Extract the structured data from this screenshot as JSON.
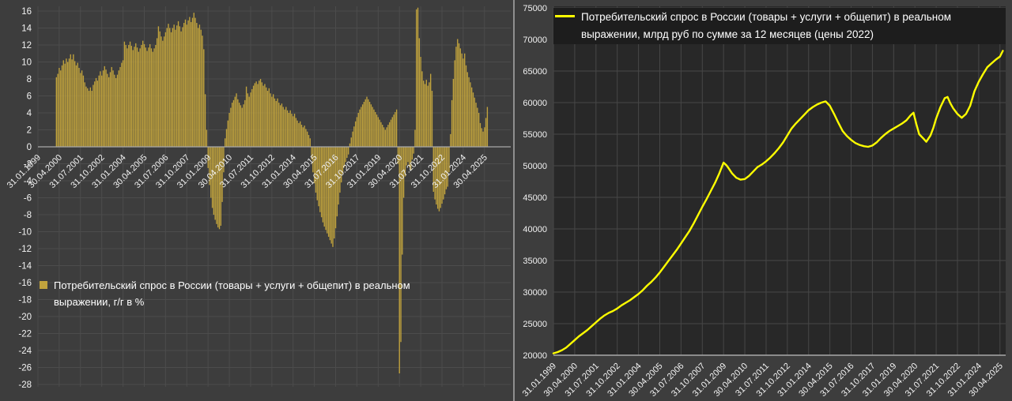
{
  "page": {
    "background": "#3d3d3d",
    "divider_color": "#8f8f8f",
    "text_color": "#f2f2f2"
  },
  "left_chart": {
    "legend": {
      "lines": [
        "Потребительский спрос в России (товары + услуги + общепит) в реальном",
        "выражении, г/г в %"
      ]
    }
  },
  "right_chart": {
    "legend": {
      "lines": [
        "Потребительский спрос в России (товары + услуги + общепит) в реальном",
        "выражении, млрд руб по сумме за 12 месяцев (цены 2022)"
      ]
    }
  },
  "chart_data": [
    {
      "type": "bar",
      "title": "Потребительский спрос в России (товары + услуги + общепит) в реальном выражении, г/г в %",
      "ylabel": "г/г в %",
      "ylim": [
        -28,
        16
      ],
      "ytick_step": 2,
      "y_tick_labels": [
        "16",
        "14",
        "12",
        "10",
        "8",
        "6",
        "4",
        "2",
        "0",
        "-2",
        "-4",
        "-6",
        "-8",
        "-10",
        "-12",
        "-14",
        "-16",
        "-18",
        "-20",
        "-22",
        "-24",
        "-26",
        "-28"
      ],
      "x_tick_labels": [
        "31.01.1999",
        "30.04.2000",
        "31.07.2001",
        "31.10.2002",
        "31.01.2004",
        "30.04.2005",
        "31.07.2006",
        "31.10.2007",
        "31.01.2009",
        "30.04.2010",
        "31.07.2011",
        "31.10.2012",
        "31.01.2014",
        "30.04.2015",
        "31.07.2016",
        "31.10.2017",
        "31.01.2019",
        "30.04.2020",
        "31.07.2021",
        "31.10.2022",
        "31.01.2024",
        "30.04.2025"
      ],
      "x_tick_month_step": 15,
      "grid": true,
      "bar_color": "#c1a33d",
      "grid_color": "#4c4c4c",
      "axis_color": "#a8a8a8",
      "start": "2000-02",
      "values_by_year": {
        "2000": [
          8.2,
          8.6,
          9.3,
          9.0,
          9.6,
          10.2,
          9.8,
          10.4,
          10.0,
          10.4,
          10.9
        ],
        "2001": [
          10.3,
          10.9,
          10.1,
          9.6,
          9.9,
          9.3,
          8.7,
          9.0,
          8.4,
          7.6,
          7.1,
          6.9
        ],
        "2002": [
          6.6,
          7.0,
          6.6,
          7.3,
          7.7,
          8.1,
          7.8,
          8.4,
          8.9,
          8.4,
          9.0,
          9.5
        ],
        "2003": [
          9.1,
          8.6,
          8.2,
          8.8,
          9.4,
          9.0,
          8.5,
          8.1,
          8.5,
          9.0,
          9.4,
          9.9
        ],
        "2004": [
          10.2,
          12.4,
          12.0,
          11.6,
          12.0,
          12.4,
          11.9,
          11.4,
          11.8,
          12.2,
          11.7,
          11.2
        ],
        "2005": [
          11.6,
          12.0,
          12.5,
          12.1,
          11.7,
          11.3,
          11.7,
          12.1,
          11.6,
          11.2,
          11.6,
          12.0
        ],
        "2006": [
          12.8,
          14.2,
          13.6,
          13.0,
          12.5,
          13.0,
          13.5,
          14.0,
          14.5,
          14.0,
          13.5,
          14.0
        ],
        "2007": [
          14.4,
          13.8,
          14.3,
          14.8,
          14.2,
          13.6,
          14.1,
          14.6,
          15.0,
          14.4,
          14.9,
          15.3
        ],
        "2008": [
          14.7,
          15.2,
          15.8,
          15.2,
          14.6,
          14.0,
          14.4,
          13.8,
          13.1,
          11.5,
          6.2,
          2.0
        ],
        "2009": [
          -2.5,
          -4.5,
          -6.0,
          -7.2,
          -8.0,
          -8.6,
          -9.1,
          -9.5,
          -9.7,
          -9.3,
          -6.5,
          -3.0
        ],
        "2010": [
          1.0,
          2.1,
          3.1,
          4.0,
          4.6,
          5.2,
          5.5,
          5.9,
          6.3,
          5.6,
          5.2,
          4.9
        ],
        "2011": [
          4.6,
          5.0,
          5.5,
          7.1,
          6.3,
          5.9,
          6.4,
          6.8,
          7.2,
          7.5,
          7.7,
          7.4
        ],
        "2012": [
          7.8,
          8.0,
          7.6,
          7.2,
          7.4,
          7.0,
          6.6,
          6.9,
          6.3,
          5.9,
          6.2,
          5.7
        ],
        "2013": [
          5.4,
          5.7,
          5.2,
          4.9,
          5.1,
          4.7,
          4.4,
          4.7,
          4.3,
          4.0,
          4.3,
          3.9
        ],
        "2014": [
          3.6,
          3.9,
          3.4,
          3.1,
          2.8,
          3.0,
          2.6,
          2.3,
          2.5,
          2.1,
          1.8,
          1.4
        ],
        "2015": [
          1.0,
          -1.5,
          -3.0,
          -4.3,
          -5.4,
          -6.3,
          -7.0,
          -7.7,
          -8.3,
          -8.9,
          -9.4,
          -9.8
        ],
        "2016": [
          -10.2,
          -10.6,
          -11.0,
          -11.4,
          -11.8,
          -10.8,
          -9.6,
          -8.2,
          -6.8,
          -5.4,
          -4.2,
          -3.2
        ],
        "2017": [
          -2.4,
          -1.8,
          -1.3,
          -0.9,
          0.4,
          1.1,
          1.8,
          2.4,
          3.0,
          3.5,
          4.0,
          4.4
        ],
        "2018": [
          4.7,
          5.0,
          5.3,
          5.6,
          5.9,
          5.6,
          5.3,
          5.0,
          4.7,
          4.4,
          4.1,
          3.8
        ],
        "2019": [
          3.5,
          3.2,
          2.9,
          2.6,
          2.3,
          2.0,
          2.3,
          2.6,
          2.9,
          3.2,
          3.5,
          3.8
        ],
        "2020": [
          4.1,
          4.4,
          -2.0,
          -26.7,
          -23.0,
          -12.7,
          -6.0,
          -3.5,
          -2.2,
          -1.8,
          -2.4,
          -2.8
        ],
        "2021": [
          -1.5,
          -0.8,
          2.0,
          16.2,
          16.4,
          12.8,
          10.6,
          8.9,
          7.8,
          7.4,
          7.9,
          7.2
        ],
        "2022": [
          7.6,
          8.6,
          6.6,
          -5.3,
          -6.2,
          -6.8,
          -7.3,
          -7.6,
          -7.2,
          -6.7,
          -6.2,
          -5.6
        ],
        "2023": [
          -5.0,
          -4.7,
          -3.0,
          1.5,
          5.5,
          8.0,
          10.2,
          11.8,
          12.7,
          12.2,
          11.6,
          11.0
        ],
        "2024": [
          10.4,
          11.0,
          9.6,
          8.8,
          8.2,
          7.6,
          7.0,
          6.4,
          5.8,
          5.2,
          4.6,
          4.0
        ],
        "2025": [
          2.8,
          2.2,
          1.8,
          2.3,
          3.4,
          4.7
        ]
      }
    },
    {
      "type": "line",
      "title": "Потребительский спрос в России (товары + услуги + общепит) в реальном выражении, млрд руб по сумме за 12 месяцев (цены 2022)",
      "ylabel": "млрд руб",
      "ylim": [
        20000,
        75000
      ],
      "ytick_step": 5000,
      "y_tick_labels": [
        "75000",
        "70000",
        "65000",
        "60000",
        "55000",
        "50000",
        "45000",
        "40000",
        "35000",
        "30000",
        "25000",
        "20000"
      ],
      "x_tick_labels": [
        "31.01.1999",
        "30.04.2000",
        "31.07.2001",
        "31.10.2002",
        "31.01.2004",
        "30.04.2005",
        "31.07.2006",
        "31.10.2007",
        "31.01.2009",
        "30.04.2010",
        "31.07.2011",
        "31.10.2012",
        "31.01.2014",
        "30.04.2015",
        "31.07.2016",
        "31.10.2017",
        "31.01.2019",
        "30.04.2020",
        "31.07.2021",
        "31.10.2022",
        "31.01.2024",
        "30.04.2025"
      ],
      "x_tick_month_step": 15,
      "grid": true,
      "line_color": "#ffff00",
      "plot_background": "#282828",
      "legend_background": "#1d1d1d",
      "grid_color": "#474747",
      "axis_color": "#a8a8a8",
      "points": [
        [
          "1999-01",
          20300
        ],
        [
          "1999-04",
          20500
        ],
        [
          "1999-07",
          20800
        ],
        [
          "1999-10",
          21200
        ],
        [
          "2000-01",
          21800
        ],
        [
          "2000-04",
          22400
        ],
        [
          "2000-07",
          23000
        ],
        [
          "2000-10",
          23500
        ],
        [
          "2001-01",
          24000
        ],
        [
          "2001-04",
          24600
        ],
        [
          "2001-07",
          25200
        ],
        [
          "2001-10",
          25800
        ],
        [
          "2002-01",
          26300
        ],
        [
          "2002-04",
          26700
        ],
        [
          "2002-07",
          27000
        ],
        [
          "2002-10",
          27400
        ],
        [
          "2003-01",
          27900
        ],
        [
          "2003-04",
          28300
        ],
        [
          "2003-07",
          28700
        ],
        [
          "2003-10",
          29200
        ],
        [
          "2004-01",
          29700
        ],
        [
          "2004-04",
          30300
        ],
        [
          "2004-07",
          31000
        ],
        [
          "2004-10",
          31600
        ],
        [
          "2005-01",
          32300
        ],
        [
          "2005-04",
          33100
        ],
        [
          "2005-07",
          34000
        ],
        [
          "2005-10",
          34900
        ],
        [
          "2006-01",
          35800
        ],
        [
          "2006-04",
          36700
        ],
        [
          "2006-07",
          37700
        ],
        [
          "2006-10",
          38700
        ],
        [
          "2007-01",
          39700
        ],
        [
          "2007-04",
          40900
        ],
        [
          "2007-07",
          42200
        ],
        [
          "2007-10",
          43500
        ],
        [
          "2008-01",
          44700
        ],
        [
          "2008-04",
          46000
        ],
        [
          "2008-07",
          47300
        ],
        [
          "2008-10",
          48800
        ],
        [
          "2009-01",
          50500
        ],
        [
          "2009-03",
          50100
        ],
        [
          "2009-04",
          49800
        ],
        [
          "2009-07",
          48800
        ],
        [
          "2009-10",
          48100
        ],
        [
          "2010-01",
          47800
        ],
        [
          "2010-04",
          47900
        ],
        [
          "2010-07",
          48400
        ],
        [
          "2010-10",
          49100
        ],
        [
          "2011-01",
          49800
        ],
        [
          "2011-04",
          50200
        ],
        [
          "2011-07",
          50700
        ],
        [
          "2011-10",
          51300
        ],
        [
          "2012-01",
          52000
        ],
        [
          "2012-04",
          52800
        ],
        [
          "2012-07",
          53700
        ],
        [
          "2012-10",
          54800
        ],
        [
          "2013-01",
          55900
        ],
        [
          "2013-04",
          56700
        ],
        [
          "2013-07",
          57400
        ],
        [
          "2013-10",
          58100
        ],
        [
          "2014-01",
          58800
        ],
        [
          "2014-04",
          59300
        ],
        [
          "2014-07",
          59700
        ],
        [
          "2014-10",
          60000
        ],
        [
          "2015-01",
          60200
        ],
        [
          "2015-04",
          59500
        ],
        [
          "2015-07",
          58200
        ],
        [
          "2015-10",
          56800
        ],
        [
          "2016-01",
          55500
        ],
        [
          "2016-04",
          54700
        ],
        [
          "2016-07",
          54100
        ],
        [
          "2016-10",
          53600
        ],
        [
          "2017-01",
          53300
        ],
        [
          "2017-04",
          53100
        ],
        [
          "2017-07",
          53000
        ],
        [
          "2017-10",
          53200
        ],
        [
          "2018-01",
          53700
        ],
        [
          "2018-04",
          54400
        ],
        [
          "2018-07",
          55000
        ],
        [
          "2018-10",
          55500
        ],
        [
          "2019-01",
          55900
        ],
        [
          "2019-04",
          56300
        ],
        [
          "2019-07",
          56700
        ],
        [
          "2019-10",
          57200
        ],
        [
          "2020-01",
          58000
        ],
        [
          "2020-03",
          58400
        ],
        [
          "2020-05",
          56600
        ],
        [
          "2020-07",
          55000
        ],
        [
          "2020-10",
          54300
        ],
        [
          "2020-12",
          53800
        ],
        [
          "2021-03",
          54800
        ],
        [
          "2021-05",
          56000
        ],
        [
          "2021-07",
          57500
        ],
        [
          "2021-10",
          59300
        ],
        [
          "2022-01",
          60700
        ],
        [
          "2022-03",
          60900
        ],
        [
          "2022-05",
          59900
        ],
        [
          "2022-07",
          59100
        ],
        [
          "2022-10",
          58200
        ],
        [
          "2023-01",
          57600
        ],
        [
          "2023-04",
          58200
        ],
        [
          "2023-07",
          59500
        ],
        [
          "2023-10",
          61800
        ],
        [
          "2024-01",
          63300
        ],
        [
          "2024-04",
          64500
        ],
        [
          "2024-07",
          65600
        ],
        [
          "2024-10",
          66200
        ],
        [
          "2025-01",
          66800
        ],
        [
          "2025-04",
          67300
        ],
        [
          "2025-06",
          68200
        ]
      ]
    }
  ]
}
